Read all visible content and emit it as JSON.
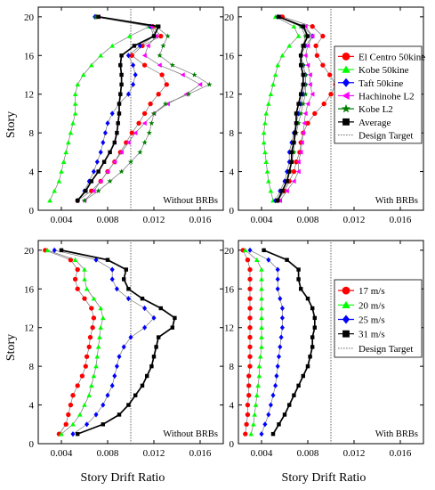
{
  "figure": {
    "xlabel": "Story Drift Ratio",
    "ylabel": "Story"
  },
  "colors": {
    "el_centro": "#ff0000",
    "kobe_50": "#00ff00",
    "taft": "#0000ff",
    "hachinohe": "#ff00ff",
    "kobe_l2": "#007f00",
    "average": "#000000",
    "design_target": "#555555"
  },
  "chart_data": [
    {
      "id": "top-left",
      "type": "line",
      "annotation": "Without BRBs",
      "xlim": [
        0.002,
        0.018
      ],
      "ylim": [
        0,
        21
      ],
      "xticks": [
        "0.004",
        "0.008",
        "0.012",
        "0.016"
      ],
      "yticks": [
        "0",
        "4",
        "8",
        "12",
        "16",
        "20"
      ],
      "design_target": 0.01,
      "y": [
        1,
        2,
        3,
        4,
        5,
        6,
        7,
        8,
        9,
        10,
        11,
        12,
        13,
        14,
        15,
        16,
        17,
        18,
        19,
        20
      ],
      "series": [
        {
          "name": "El Centro 50kine",
          "marker": "circle",
          "colorKey": "el_centro",
          "values": [
            0.0054,
            0.0066,
            0.0074,
            0.008,
            0.0086,
            0.0091,
            0.0096,
            0.0101,
            0.0107,
            0.0112,
            0.0117,
            0.0124,
            0.0131,
            0.0127,
            0.0112,
            0.0101,
            0.011,
            0.0126,
            0.0119,
            0.007
          ]
        },
        {
          "name": "Kobe 50kine",
          "marker": "triangle-up",
          "colorKey": "kobe_50",
          "values": [
            0.003,
            0.0034,
            0.0038,
            0.004,
            0.0042,
            0.0044,
            0.0046,
            0.0048,
            0.005,
            0.0052,
            0.0052,
            0.0052,
            0.0054,
            0.0059,
            0.0066,
            0.0074,
            0.0084,
            0.0099,
            0.0116,
            0.007
          ]
        },
        {
          "name": "Taft 50kine",
          "marker": "diamond",
          "colorKey": "taft",
          "values": [
            0.0054,
            0.006,
            0.0064,
            0.0068,
            0.0071,
            0.0074,
            0.0076,
            0.0078,
            0.008,
            0.0084,
            0.009,
            0.0098,
            0.0102,
            0.0104,
            0.0102,
            0.0098,
            0.0108,
            0.012,
            0.0117,
            0.0069
          ]
        },
        {
          "name": "Hachinohe L2",
          "marker": "triangle-left",
          "colorKey": "hachinohe",
          "values": [
            0.006,
            0.0068,
            0.0074,
            0.008,
            0.0086,
            0.0092,
            0.0098,
            0.0104,
            0.0112,
            0.012,
            0.0132,
            0.0148,
            0.016,
            0.0145,
            0.0125,
            0.0112,
            0.0115,
            0.0122,
            0.0118,
            0.0072
          ]
        },
        {
          "name": "Kobe L2",
          "marker": "star",
          "colorKey": "kobe_l2",
          "values": [
            0.006,
            0.0072,
            0.0082,
            0.0092,
            0.01,
            0.0108,
            0.0112,
            0.0116,
            0.0118,
            0.012,
            0.013,
            0.015,
            0.0168,
            0.0155,
            0.0136,
            0.0125,
            0.0128,
            0.0132,
            0.0122,
            0.007
          ]
        },
        {
          "name": "Average",
          "marker": "square",
          "colorKey": "average",
          "values": [
            0.0054,
            0.0061,
            0.0066,
            0.0072,
            0.0077,
            0.0082,
            0.0086,
            0.0088,
            0.0089,
            0.009,
            0.009,
            0.0091,
            0.0092,
            0.0092,
            0.0091,
            0.0092,
            0.0103,
            0.012,
            0.0124,
            0.0072
          ]
        }
      ]
    },
    {
      "id": "top-right",
      "type": "line",
      "annotation": "With BRBs",
      "xlim": [
        0.002,
        0.018
      ],
      "ylim": [
        0,
        21
      ],
      "xticks": [
        "0.004",
        "0.008",
        "0.012",
        "0.016"
      ],
      "yticks": [
        "0",
        "4",
        "8",
        "12",
        "16",
        "20"
      ],
      "design_target": 0.01,
      "y": [
        1,
        2,
        3,
        4,
        5,
        6,
        7,
        8,
        9,
        10,
        11,
        12,
        13,
        14,
        15,
        16,
        17,
        18,
        19,
        20
      ],
      "legend": {
        "entries": [
          "El Centro 50kine",
          "Kobe 50kine",
          "Taft 50kine",
          "Hachinohe L2",
          "Kobe L2",
          "Average",
          "Design Target"
        ],
        "placement": "right"
      },
      "series": [
        {
          "name": "El Centro 50kine",
          "marker": "circle",
          "colorKey": "el_centro",
          "values": [
            0.0054,
            0.006,
            0.0064,
            0.0068,
            0.007,
            0.0073,
            0.0074,
            0.0076,
            0.008,
            0.0086,
            0.0094,
            0.01,
            0.0104,
            0.0099,
            0.0093,
            0.0088,
            0.0087,
            0.0093,
            0.0084,
            0.0058
          ]
        },
        {
          "name": "Kobe 50kine",
          "marker": "triangle-up",
          "colorKey": "kobe_50",
          "values": [
            0.005,
            0.0048,
            0.0046,
            0.0045,
            0.0044,
            0.0043,
            0.0042,
            0.0042,
            0.0043,
            0.0044,
            0.0046,
            0.0048,
            0.005,
            0.0052,
            0.0054,
            0.0058,
            0.0064,
            0.0072,
            0.0068,
            0.0052
          ]
        },
        {
          "name": "Taft 50kine",
          "marker": "diamond",
          "colorKey": "taft",
          "values": [
            0.0052,
            0.0056,
            0.006,
            0.0062,
            0.0064,
            0.0064,
            0.0066,
            0.0068,
            0.007,
            0.0072,
            0.0074,
            0.0076,
            0.0078,
            0.0078,
            0.0076,
            0.0074,
            0.0078,
            0.0084,
            0.0076,
            0.0054
          ]
        },
        {
          "name": "Hachinohe L2",
          "marker": "triangle-left",
          "colorKey": "hachinohe",
          "values": [
            0.0056,
            0.0062,
            0.0068,
            0.0072,
            0.0072,
            0.0074,
            0.0075,
            0.0076,
            0.0077,
            0.0078,
            0.008,
            0.0084,
            0.0082,
            0.0082,
            0.008,
            0.0078,
            0.008,
            0.0084,
            0.0078,
            0.0055
          ]
        },
        {
          "name": "Kobe L2",
          "marker": "star",
          "colorKey": "kobe_l2",
          "values": [
            0.0054,
            0.0058,
            0.0062,
            0.0064,
            0.0066,
            0.0068,
            0.0068,
            0.007,
            0.0072,
            0.0074,
            0.0076,
            0.0078,
            0.0078,
            0.0078,
            0.0076,
            0.0074,
            0.0076,
            0.0078,
            0.0074,
            0.0054
          ]
        },
        {
          "name": "Average",
          "marker": "square",
          "colorKey": "average",
          "values": [
            0.0054,
            0.0058,
            0.0062,
            0.0064,
            0.0066,
            0.0066,
            0.0068,
            0.0069,
            0.007,
            0.007,
            0.0072,
            0.0074,
            0.0076,
            0.0076,
            0.0074,
            0.0074,
            0.0076,
            0.008,
            0.0076,
            0.0055
          ]
        }
      ]
    },
    {
      "id": "bottom-left",
      "type": "line",
      "annotation": "Without BRBs",
      "xlim": [
        0.002,
        0.018
      ],
      "ylim": [
        0,
        21
      ],
      "xticks": [
        "0.004",
        "0.008",
        "0.012",
        "0.016"
      ],
      "yticks": [
        "0",
        "4",
        "8",
        "12",
        "16",
        "20"
      ],
      "design_target": 0.01,
      "y": [
        1,
        2,
        3,
        4,
        5,
        6,
        7,
        8,
        9,
        10,
        11,
        12,
        13,
        14,
        15,
        16,
        17,
        18,
        19,
        20
      ],
      "series": [
        {
          "name": "17 m/s",
          "marker": "circle",
          "colorKey": "el_centro",
          "values": [
            0.0038,
            0.0044,
            0.0046,
            0.0048,
            0.005,
            0.0054,
            0.0058,
            0.0061,
            0.0062,
            0.0064,
            0.0065,
            0.0067,
            0.0068,
            0.0066,
            0.006,
            0.0054,
            0.0052,
            0.0054,
            0.0048,
            0.0026
          ]
        },
        {
          "name": "20 m/s",
          "marker": "triangle-up",
          "colorKey": "kobe_50",
          "values": [
            0.004,
            0.005,
            0.0056,
            0.006,
            0.0064,
            0.0066,
            0.0068,
            0.007,
            0.0071,
            0.0072,
            0.0073,
            0.0074,
            0.0076,
            0.0074,
            0.0068,
            0.0062,
            0.006,
            0.006,
            0.0052,
            0.0028
          ]
        },
        {
          "name": "25 m/s",
          "marker": "diamond",
          "colorKey": "taft",
          "values": [
            0.005,
            0.0062,
            0.007,
            0.0076,
            0.008,
            0.0084,
            0.0086,
            0.0088,
            0.009,
            0.0094,
            0.01,
            0.0112,
            0.012,
            0.0112,
            0.0098,
            0.0088,
            0.0084,
            0.0084,
            0.007,
            0.0034
          ]
        },
        {
          "name": "31 m/s",
          "marker": "square",
          "colorKey": "average",
          "values": [
            0.0054,
            0.0076,
            0.009,
            0.0098,
            0.0104,
            0.011,
            0.0114,
            0.0118,
            0.012,
            0.0122,
            0.0124,
            0.0136,
            0.0138,
            0.0126,
            0.011,
            0.0098,
            0.0094,
            0.0096,
            0.008,
            0.004
          ]
        }
      ]
    },
    {
      "id": "bottom-right",
      "type": "line",
      "annotation": "With BRBs",
      "xlim": [
        0.002,
        0.018
      ],
      "ylim": [
        0,
        21
      ],
      "xticks": [
        "0.004",
        "0.008",
        "0.012",
        "0.016"
      ],
      "yticks": [
        "0",
        "4",
        "8",
        "12",
        "16",
        "20"
      ],
      "design_target": 0.01,
      "y": [
        1,
        2,
        3,
        4,
        5,
        6,
        7,
        8,
        9,
        10,
        11,
        12,
        13,
        14,
        15,
        16,
        17,
        18,
        19,
        20
      ],
      "legend": {
        "entries": [
          "17 m/s",
          "20 m/s",
          "25 m/s",
          "31 m/s",
          "Design Target"
        ],
        "placement": "right"
      },
      "series": [
        {
          "name": "17 m/s",
          "marker": "circle",
          "colorKey": "el_centro",
          "values": [
            0.0026,
            0.0027,
            0.0028,
            0.0028,
            0.0029,
            0.0029,
            0.0029,
            0.003,
            0.003,
            0.003,
            0.003,
            0.003,
            0.003,
            0.003,
            0.003,
            0.003,
            0.003,
            0.003,
            0.0028,
            0.0024
          ]
        },
        {
          "name": "20 m/s",
          "marker": "triangle-up",
          "colorKey": "kobe_50",
          "values": [
            0.0031,
            0.0033,
            0.0034,
            0.0035,
            0.0036,
            0.0037,
            0.0038,
            0.0038,
            0.0039,
            0.004,
            0.004,
            0.004,
            0.004,
            0.004,
            0.004,
            0.004,
            0.004,
            0.004,
            0.0036,
            0.0026
          ]
        },
        {
          "name": "25 m/s",
          "marker": "diamond",
          "colorKey": "taft",
          "values": [
            0.004,
            0.0043,
            0.0046,
            0.0048,
            0.005,
            0.0052,
            0.0053,
            0.0054,
            0.0055,
            0.0056,
            0.0057,
            0.0058,
            0.0058,
            0.0058,
            0.0056,
            0.0054,
            0.0054,
            0.0054,
            0.0046,
            0.003
          ]
        },
        {
          "name": "31 m/s",
          "marker": "square",
          "colorKey": "average",
          "values": [
            0.005,
            0.0055,
            0.006,
            0.0064,
            0.0068,
            0.0072,
            0.0076,
            0.008,
            0.0082,
            0.0084,
            0.0084,
            0.0086,
            0.0086,
            0.0084,
            0.008,
            0.0074,
            0.0072,
            0.0072,
            0.0062,
            0.0042
          ]
        }
      ]
    }
  ]
}
